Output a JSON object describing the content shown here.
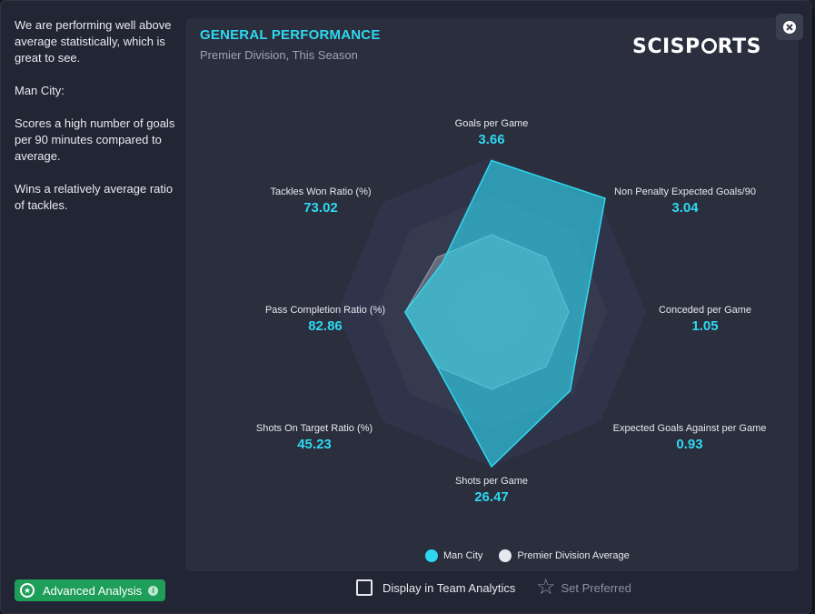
{
  "insights": {
    "paragraphs": [
      "We are performing well above average statistically, which is great to see.",
      "Man City:",
      "Scores a high number of goals per 90 minutes compared to average.",
      "Wins a relatively average ratio of tackles."
    ]
  },
  "panel": {
    "title": "GENERAL PERFORMANCE",
    "subtitle": "Premier Division, This Season",
    "logo_before": "SCISP",
    "logo_after": "RTS"
  },
  "chart_data": {
    "type": "radar",
    "axes": [
      {
        "name": "Goals per Game",
        "value_label": "3.66"
      },
      {
        "name": "Non Penalty Expected Goals/90",
        "value_label": "3.04"
      },
      {
        "name": "Conceded per Game",
        "value_label": "1.05"
      },
      {
        "name": "Expected Goals Against per Game",
        "value_label": "0.93"
      },
      {
        "name": "Shots per Game",
        "value_label": "26.47"
      },
      {
        "name": "Shots On Target Ratio (%)",
        "value_label": "45.23"
      },
      {
        "name": "Pass Completion Ratio (%)",
        "value_label": "82.86"
      },
      {
        "name": "Tackles Won Ratio (%)",
        "value_label": "73.02"
      }
    ],
    "series": [
      {
        "name": "Man City",
        "color": "#2fd8f0",
        "relative_values": [
          0.98,
          1.04,
          0.6,
          0.72,
          1.0,
          0.5,
          0.56,
          0.45
        ]
      },
      {
        "name": "Premier Division Average",
        "color": "#e7e9ee",
        "relative_values": [
          0.5,
          0.5,
          0.5,
          0.5,
          0.5,
          0.5,
          0.56,
          0.5
        ]
      }
    ],
    "rings": 4,
    "legend": "bottom"
  },
  "footer": {
    "advanced_label": "Advanced Analysis",
    "display_label": "Display in Team Analytics",
    "set_preferred_label": "Set Preferred"
  },
  "icons": {
    "close": "close-icon",
    "advanced": "star-circle-icon",
    "info": "info-icon",
    "checkbox": "checkbox-icon",
    "star": "star-outline-icon"
  },
  "colors": {
    "accent": "#2fd8f0",
    "button_green": "#1e9e59",
    "panel_bg": "#2a2e3d"
  }
}
